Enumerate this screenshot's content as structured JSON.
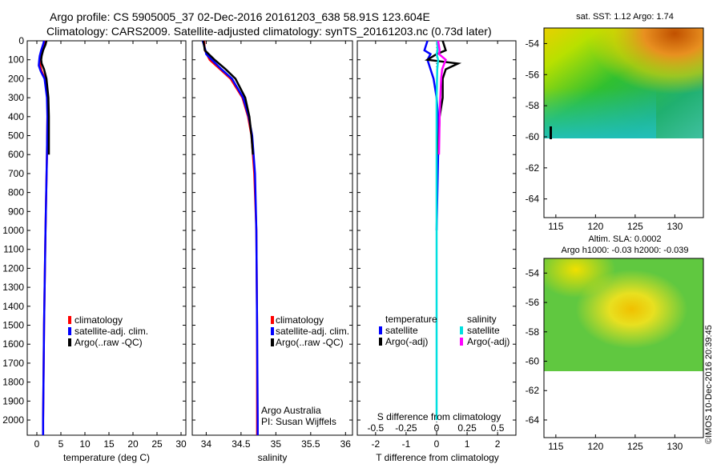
{
  "header": {
    "title_line1": "Argo profile: CS 5905005_37 02-Dec-2016 20161203_638 58.91S 123.604E",
    "title_line2": "Climatology: CARS2009. Satellite-adjusted climatology: synTS_20161203.nc (0.73d later)"
  },
  "chart_data": [
    {
      "type": "line",
      "panel": "temperature",
      "xlabel": "temperature (deg C)",
      "xlim": [
        -2,
        31
      ],
      "xticks": [
        0,
        5,
        10,
        15,
        20,
        25,
        30
      ],
      "ylim": [
        2080,
        0
      ],
      "yticks": [
        0,
        100,
        200,
        300,
        400,
        500,
        600,
        700,
        800,
        900,
        1000,
        1100,
        1200,
        1300,
        1400,
        1500,
        1600,
        1700,
        1800,
        1900,
        2000
      ],
      "legend": [
        "climatology",
        "satellite-adj. clim.",
        "Argo(..raw -QC)"
      ],
      "series": [
        {
          "name": "climatology",
          "color": "#ff0000",
          "depth": [
            0,
            20,
            50,
            80,
            100,
            130,
            160,
            200,
            300,
            400,
            600,
            1000,
            1500,
            2000,
            2080
          ],
          "values": [
            1.8,
            1.6,
            1.2,
            0.9,
            0.8,
            0.7,
            1.0,
            1.7,
            2.2,
            2.2,
            2.1,
            1.8,
            1.5,
            1.3,
            1.3
          ]
        },
        {
          "name": "satellite-adj. clim.",
          "color": "#0000ff",
          "depth": [
            0,
            20,
            50,
            80,
            100,
            130,
            160,
            200,
            300,
            400,
            600,
            1000,
            1500,
            2000,
            2080
          ],
          "values": [
            1.5,
            1.3,
            0.9,
            0.6,
            0.5,
            0.4,
            0.8,
            1.6,
            2.1,
            2.2,
            2.1,
            1.8,
            1.5,
            1.3,
            1.3
          ]
        },
        {
          "name": "Argo(..raw -QC)",
          "color": "#000000",
          "depth": [
            0,
            20,
            50,
            80,
            100,
            120,
            150,
            200,
            300,
            400,
            500,
            600
          ],
          "values": [
            2.0,
            1.8,
            1.3,
            1.0,
            0.9,
            1.0,
            1.5,
            2.0,
            2.4,
            2.5,
            2.5,
            2.5
          ]
        }
      ]
    },
    {
      "type": "line",
      "panel": "salinity",
      "xlabel": "salinity",
      "xlim": [
        33.8,
        36.1
      ],
      "xticks": [
        34,
        34.5,
        35,
        35.5,
        36
      ],
      "ylim": [
        2080,
        0
      ],
      "legend": [
        "climatology",
        "satellite-adj. clim.",
        "Argo(..raw -QC)"
      ],
      "annotation_lines": [
        "Argo Australia",
        "PI: Susan Wijffels"
      ],
      "series": [
        {
          "name": "climatology",
          "color": "#ff0000",
          "depth": [
            0,
            50,
            100,
            150,
            200,
            300,
            400,
            500,
            700,
            1000,
            1500,
            2000,
            2080
          ],
          "values": [
            33.97,
            33.98,
            34.05,
            34.2,
            34.35,
            34.52,
            34.6,
            34.65,
            34.69,
            34.72,
            34.73,
            34.73,
            34.73
          ]
        },
        {
          "name": "satellite-adj. clim.",
          "color": "#0000ff",
          "depth": [
            0,
            50,
            70,
            100,
            150,
            200,
            300,
            400,
            500,
            700,
            1000,
            1500,
            2000,
            2080
          ],
          "values": [
            33.95,
            33.99,
            34.0,
            34.08,
            34.22,
            34.37,
            34.53,
            34.61,
            34.66,
            34.7,
            34.72,
            34.73,
            34.74,
            34.74
          ]
        },
        {
          "name": "Argo(..raw -QC)",
          "color": "#000000",
          "depth": [
            0,
            50,
            100,
            150,
            200,
            300,
            400,
            500,
            600
          ],
          "values": [
            33.96,
            33.98,
            34.12,
            34.28,
            34.42,
            34.56,
            34.62,
            34.65,
            34.67
          ]
        }
      ]
    },
    {
      "type": "line",
      "panel": "difference",
      "xlabel": "T difference from climatology",
      "xlabel_top": "S difference from climatology",
      "xlim": [
        -2.6,
        2.6
      ],
      "xticks": [
        -2,
        -1,
        0,
        1,
        2
      ],
      "xticks_top": [
        -0.5,
        -0.25,
        0,
        0.25,
        0.5
      ],
      "ylim": [
        2080,
        0
      ],
      "legend_headers": [
        "temperature",
        "salinity"
      ],
      "legend": [
        "satellite",
        "Argo(-adj)",
        "satellite",
        "Argo(-adj)"
      ],
      "series": [
        {
          "name": "satellite",
          "group": "temperature",
          "color": "#0000ff",
          "depth": [
            0,
            50,
            70,
            100,
            150,
            200,
            300,
            400,
            600,
            1000
          ],
          "values": [
            -0.3,
            -0.4,
            -0.2,
            -0.3,
            -0.2,
            -0.1,
            0.0,
            0.05,
            0.05,
            0.0
          ]
        },
        {
          "name": "Argo(-adj)",
          "group": "temperature",
          "color": "#000000",
          "depth": [
            0,
            50,
            70,
            100,
            120,
            150,
            200,
            300,
            400,
            600
          ],
          "values": [
            0.2,
            0.3,
            0.0,
            -0.3,
            0.7,
            0.3,
            0.2,
            0.2,
            0.1,
            0.05
          ]
        },
        {
          "name": "satellite",
          "group": "salinity",
          "color": "#00e0e0",
          "depth": [
            0,
            50,
            70,
            100,
            150,
            300,
            600,
            1000,
            2000
          ],
          "values": [
            0.02,
            0.03,
            0.0,
            0.05,
            0.02,
            0.0,
            0.0,
            0.0,
            0.0
          ]
        },
        {
          "name": "Argo(-adj)",
          "group": "salinity",
          "color": "#ff00ff",
          "depth": [
            0,
            50,
            70,
            100,
            150,
            200,
            300,
            400,
            600
          ],
          "values": [
            0.05,
            0.1,
            0.08,
            0.3,
            0.18,
            0.15,
            0.12,
            0.1,
            0.08
          ]
        }
      ]
    },
    {
      "type": "heatmap",
      "panel": "sst_map",
      "title": "sat. SST: 1.12 Argo: 1.74",
      "xticks": [
        115,
        120,
        125,
        130
      ],
      "yticks": [
        -54,
        -56,
        -58,
        -60,
        -62,
        -64
      ],
      "xlim": [
        113.5,
        133.6
      ],
      "ylim": [
        -65.2,
        -53
      ]
    },
    {
      "type": "heatmap",
      "panel": "sla_map",
      "title_line1": "Altim. SLA: 0.0002",
      "title_line2": "Argo h1000: -0.03 h2000: -0.039",
      "xticks": [
        115,
        120,
        125,
        130
      ],
      "yticks": [
        -54,
        -56,
        -58,
        -60,
        -62,
        -64
      ],
      "xlim": [
        113.5,
        133.6
      ],
      "ylim": [
        -65.2,
        -53
      ]
    }
  ],
  "footer": {
    "credit": "©IMOS 10-Dec-2016 20:39:45"
  }
}
